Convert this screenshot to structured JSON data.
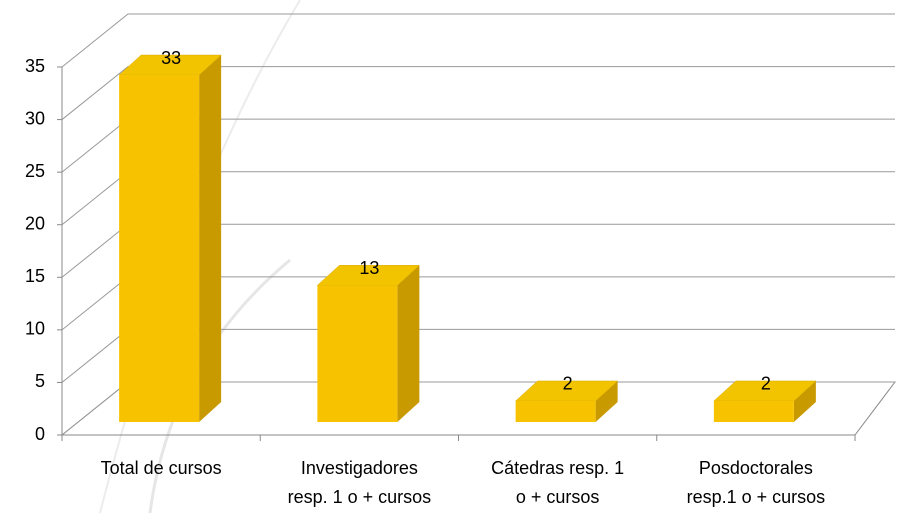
{
  "chart_data": {
    "type": "bar3d",
    "categories": [
      [
        "Total de cursos"
      ],
      [
        "Investigadores",
        "resp. 1 o + cursos"
      ],
      [
        "Cátedras resp. 1",
        "o + cursos"
      ],
      [
        "Posdoctorales",
        "resp.1 o +  cursos"
      ]
    ],
    "values": [
      33,
      13,
      2,
      2
    ],
    "color": "#f7c300",
    "ylim": [
      0,
      35
    ],
    "yticks": [
      0,
      5,
      10,
      15,
      20,
      25,
      30,
      35
    ],
    "grid": true
  }
}
